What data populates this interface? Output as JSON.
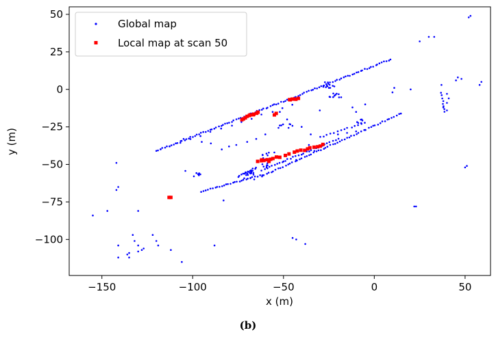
{
  "caption": "(b)",
  "colors": {
    "global": "#0000ff",
    "local": "#ff0000",
    "axis": "#000000",
    "legend_border": "#cccccc"
  },
  "chart_data": {
    "type": "scatter",
    "title": "",
    "xlabel": "x (m)",
    "ylabel": "y (m)",
    "xlim": [
      -168,
      64
    ],
    "ylim": [
      -124,
      55
    ],
    "xticks": [
      -150,
      -100,
      -50,
      0,
      50
    ],
    "xtick_labels": [
      "−150",
      "−100",
      "−50",
      "0",
      "50"
    ],
    "yticks": [
      50,
      25,
      0,
      -25,
      -50,
      -75,
      -100
    ],
    "ytick_labels": [
      "50",
      "25",
      "0",
      "−25",
      "−50",
      "−75",
      "−100"
    ],
    "grid": false,
    "legend_position": "top-left",
    "series": [
      {
        "name": "Global map",
        "marker": "point",
        "color": "#0000ff",
        "lines": [
          {
            "from": [
              -120,
              -41
            ],
            "to": [
              9,
              20
            ],
            "n": 110
          },
          {
            "from": [
              -118,
              -40
            ],
            "to": [
              -45,
              -10
            ],
            "n": 14
          },
          {
            "from": [
              -62,
              -58
            ],
            "to": [
              15,
              -16
            ],
            "n": 60
          },
          {
            "from": [
              -95,
              -68
            ],
            "to": [
              -62,
              -57
            ],
            "n": 28
          },
          {
            "from": [
              -62,
              -54
            ],
            "to": [
              -20,
              -33
            ],
            "n": 30
          },
          {
            "from": [
              -75,
              -58
            ],
            "to": [
              -65,
              -52
            ],
            "n": 12
          },
          {
            "from": [
              -30,
              -32
            ],
            "to": [
              -5,
              -22
            ],
            "n": 14
          },
          {
            "from": [
              37,
              -2
            ],
            "to": [
              39,
              -15
            ],
            "n": 8
          }
        ],
        "clusters": [
          {
            "c": [
              -69,
              -57
            ],
            "r": [
              3,
              3
            ],
            "n": 16
          },
          {
            "c": [
              -60,
              -47
            ],
            "r": [
              2,
              5
            ],
            "n": 14
          },
          {
            "c": [
              -25,
              3
            ],
            "r": [
              4,
              2
            ],
            "n": 10
          },
          {
            "c": [
              -22,
              -4
            ],
            "r": [
              4,
              1.5
            ],
            "n": 10
          },
          {
            "c": [
              -48,
              -25
            ],
            "r": [
              5,
              2
            ],
            "n": 8
          },
          {
            "c": [
              -8,
              -21
            ],
            "r": [
              2,
              2
            ],
            "n": 6
          },
          {
            "c": [
              -100,
              -56
            ],
            "r": [
              5,
              3
            ],
            "n": 8
          }
        ],
        "points": [
          [
            -155,
            -84
          ],
          [
            -147,
            -81
          ],
          [
            -142,
            -49
          ],
          [
            -142,
            -67
          ],
          [
            -141,
            -65
          ],
          [
            -130,
            -81
          ],
          [
            -133,
            -97
          ],
          [
            -132,
            -101
          ],
          [
            -130,
            -104
          ],
          [
            -128,
            -107
          ],
          [
            -127,
            -106
          ],
          [
            -130,
            -108
          ],
          [
            -135,
            -109
          ],
          [
            -136,
            -110
          ],
          [
            -135,
            -112
          ],
          [
            -141,
            -104
          ],
          [
            -141,
            -112
          ],
          [
            -122,
            -97
          ],
          [
            -120,
            -101
          ],
          [
            -119,
            -104
          ],
          [
            -112,
            -107
          ],
          [
            -106,
            -115
          ],
          [
            -88,
            -104
          ],
          [
            -45,
            -99
          ],
          [
            -43,
            -100
          ],
          [
            -38,
            -103
          ],
          [
            -50,
            -48
          ],
          [
            -43,
            -47
          ],
          [
            -33,
            -41
          ],
          [
            -36,
            -37
          ],
          [
            -55,
            -42
          ],
          [
            -30,
            -14
          ],
          [
            -10,
            -15
          ],
          [
            -12,
            -12
          ],
          [
            -20,
            -30
          ],
          [
            -15,
            -29
          ],
          [
            -10,
            -28
          ],
          [
            -5,
            -27
          ],
          [
            -25,
            1
          ],
          [
            -22,
            2
          ],
          [
            -5,
            -10
          ],
          [
            10,
            -2
          ],
          [
            11,
            1
          ],
          [
            20,
            0
          ],
          [
            22,
            -78
          ],
          [
            23,
            -78
          ],
          [
            25,
            32
          ],
          [
            30,
            35
          ],
          [
            33,
            35
          ],
          [
            37,
            3
          ],
          [
            40,
            -3
          ],
          [
            41,
            -6
          ],
          [
            40,
            -9
          ],
          [
            38,
            -12
          ],
          [
            40,
            -14
          ],
          [
            45,
            6
          ],
          [
            46,
            8
          ],
          [
            48,
            7
          ],
          [
            50,
            -52
          ],
          [
            51,
            -51
          ],
          [
            52,
            48
          ],
          [
            53,
            49
          ],
          [
            58,
            3
          ],
          [
            59,
            5
          ],
          [
            -84,
            -40
          ],
          [
            -80,
            -38
          ],
          [
            -76,
            -37
          ],
          [
            -70,
            -35
          ],
          [
            -65,
            -33
          ],
          [
            -60,
            -30
          ],
          [
            -105,
            -33
          ],
          [
            -95,
            -35
          ],
          [
            -90,
            -36
          ],
          [
            -52,
            -15
          ],
          [
            -48,
            -20
          ],
          [
            -40,
            -25
          ],
          [
            -35,
            -30
          ],
          [
            -83,
            -74
          ]
        ]
      },
      {
        "name": "Local map at scan 50",
        "marker": "square",
        "color": "#ff0000",
        "lines": [
          {
            "from": [
              -73,
              -20
            ],
            "to": [
              -64,
              -15
            ],
            "n": 10
          },
          {
            "from": [
              -47,
              -7
            ],
            "to": [
              -42,
              -6
            ],
            "n": 6
          },
          {
            "from": [
              -64,
              -48
            ],
            "to": [
              -52,
              -45
            ],
            "n": 8
          },
          {
            "from": [
              -44,
              -42
            ],
            "to": [
              -28,
              -37
            ],
            "n": 10
          }
        ],
        "points": [
          [
            -113,
            -72
          ],
          [
            -112,
            -72
          ],
          [
            -55,
            -17
          ],
          [
            -54,
            -16
          ],
          [
            -49,
            -44
          ],
          [
            -47,
            -43
          ],
          [
            -62,
            -47
          ],
          [
            -58,
            -48
          ]
        ]
      }
    ]
  }
}
